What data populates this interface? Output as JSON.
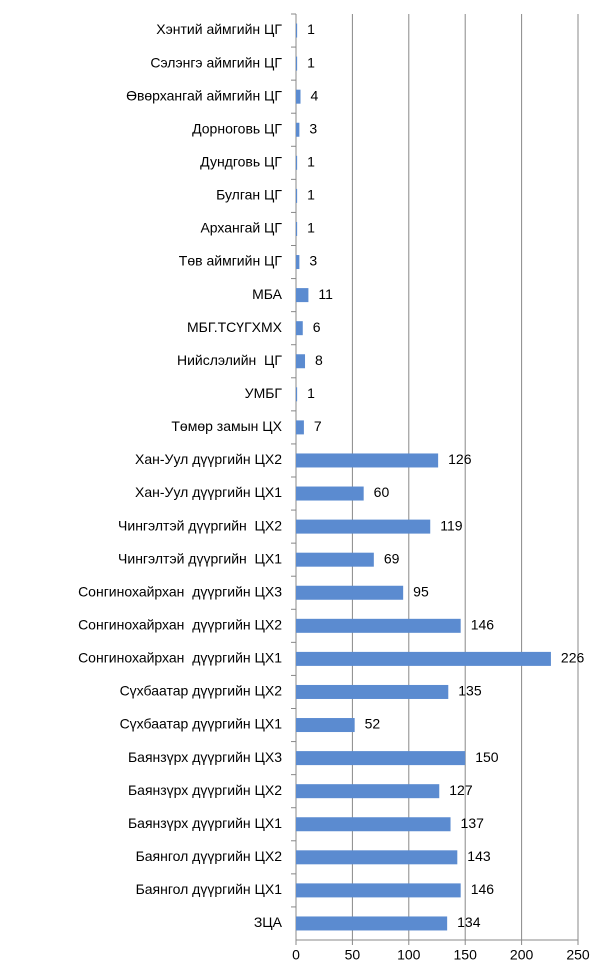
{
  "chart_data": {
    "type": "barh",
    "categories": [
      "Хэнтий аймгийн ЦГ",
      "Сэлэнгэ аймгийн ЦГ",
      "Өвөрхангай аймгийн ЦГ",
      "Дорноговь ЦГ",
      "Дундговь ЦГ",
      "Булган ЦГ",
      "Архангай ЦГ",
      "Төв аймгийн ЦГ",
      "МБА",
      "МБГ.ТСҮГХМХ",
      "Нийслэлийн  ЦГ",
      "УМБГ",
      "Төмөр замын ЦХ",
      "Хан-Уул дүүргийн ЦХ2",
      "Хан-Уул дүүргийн ЦХ1",
      "Чингэлтэй дүүргийн  ЦХ2",
      "Чингэлтэй дүүргийн  ЦХ1",
      "Сонгинохайрхан  дүүргийн ЦХ3",
      "Сонгинохайрхан  дүүргийн ЦХ2",
      "Сонгинохайрхан  дүүргийн ЦХ1",
      "Сүхбаатар дүүргийн ЦХ2",
      "Сүхбаатар дүүргийн ЦХ1",
      "Баянзүрх дүүргийн ЦХ3",
      "Баянзүрх дүүргийн ЦХ2",
      "Баянзүрх дүүргийн ЦХ1",
      "Баянгол дүүргийн ЦХ2",
      "Баянгол дүүргийн ЦХ1",
      "ЗЦА"
    ],
    "values": [
      1,
      1,
      4,
      3,
      1,
      1,
      1,
      3,
      11,
      6,
      8,
      1,
      7,
      126,
      60,
      119,
      69,
      95,
      146,
      226,
      135,
      52,
      150,
      127,
      137,
      143,
      146,
      134
    ],
    "color": "#5b8bd0",
    "xlim": [
      0,
      250
    ],
    "xticks": [
      0,
      50,
      100,
      150,
      200,
      250
    ],
    "grid": true
  }
}
